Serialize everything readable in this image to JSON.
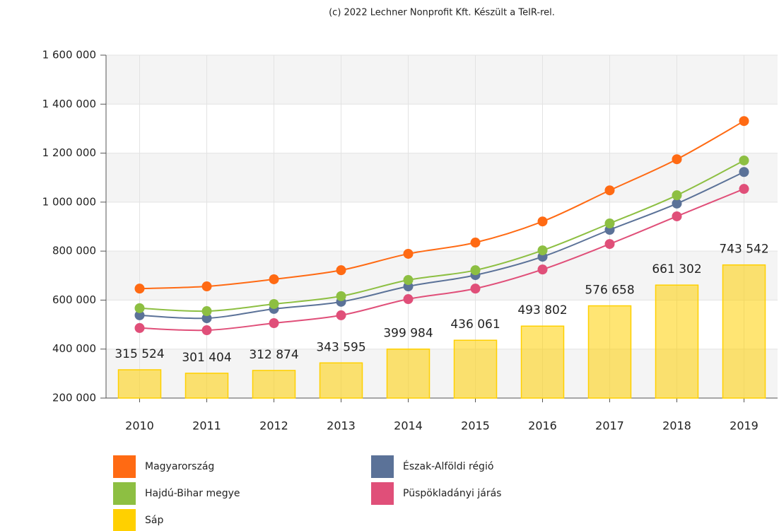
{
  "chart_data": {
    "type": "bar",
    "credit": "(c) 2022 Lechner Nonprofit Kft. Készült a TeIR-rel.",
    "categories": [
      "2010",
      "2011",
      "2012",
      "2013",
      "2014",
      "2015",
      "2016",
      "2017",
      "2018",
      "2019"
    ],
    "ylim": [
      200000,
      1600000
    ],
    "yticks": [
      {
        "value": 200000,
        "label": "200 000"
      },
      {
        "value": 400000,
        "label": "400 000"
      },
      {
        "value": 600000,
        "label": "600 000"
      },
      {
        "value": 800000,
        "label": "800 000"
      },
      {
        "value": 1000000,
        "label": "1 000 000"
      },
      {
        "value": 1200000,
        "label": "1 200 000"
      },
      {
        "value": 1400000,
        "label": "1 400 000"
      },
      {
        "value": 1600000,
        "label": "1 600 000"
      }
    ],
    "grid": true,
    "series": [
      {
        "name": "Magyarország",
        "type": "line",
        "color": "#ff6a13",
        "values": [
          647000,
          656000,
          685000,
          722000,
          789000,
          835000,
          921000,
          1048000,
          1175000,
          1331000
        ]
      },
      {
        "name": "Észak-Alföldi régió",
        "type": "line",
        "color": "#5b7298",
        "values": [
          538000,
          526000,
          564000,
          593000,
          656000,
          702000,
          777000,
          887000,
          994000,
          1123000
        ]
      },
      {
        "name": "Hajdú-Bihar megye",
        "type": "line",
        "color": "#8dbf42",
        "values": [
          567000,
          555000,
          584000,
          616000,
          682000,
          722000,
          803000,
          913000,
          1028000,
          1170000
        ]
      },
      {
        "name": "Püspökladányi járás",
        "type": "line",
        "color": "#e04f79",
        "values": [
          486000,
          477000,
          506000,
          538000,
          604000,
          647000,
          725000,
          829000,
          942000,
          1054000
        ]
      },
      {
        "name": "Sáp",
        "type": "bar",
        "color": "#ffd000",
        "values": [
          315524,
          301404,
          312874,
          343595,
          399984,
          436061,
          493802,
          576658,
          661302,
          743542
        ],
        "value_labels": [
          "315 524",
          "301 404",
          "312 874",
          "343 595",
          "399 984",
          "436 061",
          "493 802",
          "576 658",
          "661 302",
          "743 542"
        ]
      }
    ]
  }
}
